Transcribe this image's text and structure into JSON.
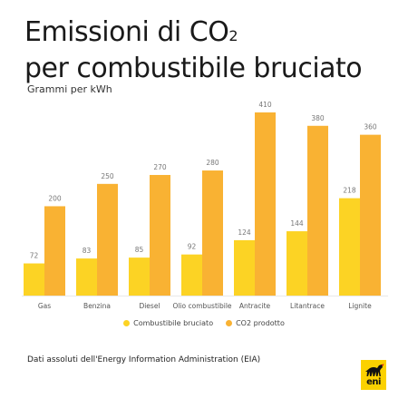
{
  "header": {
    "title_line1": "Emissioni di CO",
    "title_sub": "2",
    "title_line2": "per combustibile bruciato",
    "subtitle": "Grammi per kWh"
  },
  "chart_data": {
    "type": "bar",
    "title": "Emissioni di CO2 per combustibile bruciato",
    "ylabel": "Grammi per kWh",
    "categories": [
      "Gas",
      "Benzina",
      "Diesel",
      "Olio combustibile",
      "Antracite",
      "Litantrace",
      "Lignite"
    ],
    "series": [
      {
        "name": "Combustibile bruciato",
        "values": [
          72,
          83,
          85,
          92,
          124,
          144,
          218
        ],
        "color": "#fcd324"
      },
      {
        "name": "CO2 prodotto",
        "values": [
          200,
          250,
          270,
          280,
          410,
          380,
          360
        ],
        "color": "#f9b233"
      }
    ],
    "ylim": [
      0,
      410
    ],
    "grid": false,
    "legend_position": "bottom"
  },
  "legend": [
    {
      "label": "Combustibile bruciato",
      "color": "#fcd324"
    },
    {
      "label": "CO2 prodotto",
      "color": "#f9b233"
    }
  ],
  "footer": {
    "source": "Dati assoluti dell'Energy Information Administration (EIA)",
    "logo_text": "eni",
    "logo_icon": "six-legged-dog-icon",
    "logo_color": "#fbd100"
  }
}
